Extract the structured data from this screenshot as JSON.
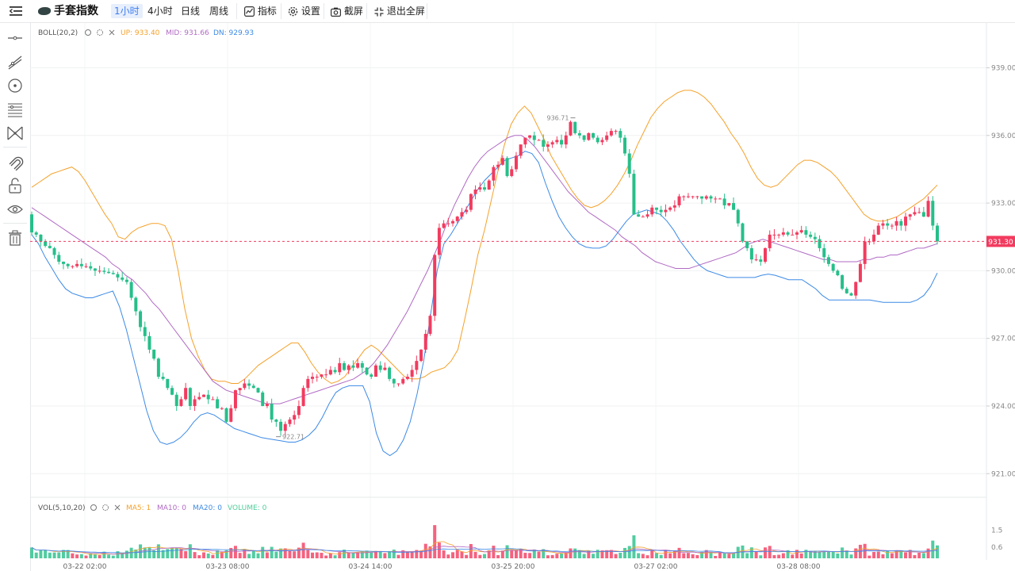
{
  "toolbar": {
    "brand": "手套指数",
    "intervals": [
      "1小时",
      "4小时",
      "日线",
      "周线"
    ],
    "active_interval": "1小时",
    "indicators_label": "指标",
    "settings_label": "设置",
    "screenshot_label": "截屏",
    "exit_fullscreen_label": "退出全屏"
  },
  "sidebar": {
    "tools": [
      "horizontal-line-icon",
      "trend-line-icon",
      "circle-point-icon",
      "fibonacci-lines-icon",
      "pattern-icon",
      "magnet-icon",
      "lock-icon",
      "eye-icon",
      "trash-icon"
    ]
  },
  "main_legend": {
    "name": "BOLL(20,2)",
    "up": "UP: 933.40",
    "mid": "MID: 931.66",
    "dn": "DN: 929.93"
  },
  "vol_legend": {
    "name": "VOL(5,10,20)",
    "ma5": "MA5: 1",
    "ma10": "MA10: 0",
    "ma20": "MA20: 0",
    "volume": "VOLUME: 0"
  },
  "price": {
    "current": "931.30",
    "current_value": 931.3,
    "high_label": "936.71",
    "low_label": "922.71"
  },
  "colors": {
    "up": "#f23b5f",
    "down": "#26bf8a",
    "boll_up": "#f5a12a",
    "boll_mid": "#b06ac4",
    "boll_dn": "#3c8ae6",
    "price_line": "#f23b5f"
  },
  "chart_data": {
    "type": "candlestick",
    "y_ticks": [
      "939.00",
      "936.00",
      "933.00",
      "930.00",
      "927.00",
      "924.00",
      "921.00"
    ],
    "ylim": [
      920.2,
      940.6
    ],
    "x_ticks": [
      "03-22 02:00",
      "03-23 08:00",
      "03-24 14:00",
      "03-25 20:00",
      "03-27 02:00",
      "03-28 08:00"
    ],
    "vol_ticks": [
      "1.5",
      "0.6"
    ],
    "vol_ylim": [
      0,
      2.2
    ],
    "close": [
      931.7,
      931.6,
      931.3,
      931.1,
      931.0,
      930.7,
      930.4,
      930.3,
      930.2,
      930.2,
      930.3,
      930.2,
      930.2,
      930.1,
      930.0,
      930.0,
      929.95,
      929.9,
      929.85,
      929.7,
      929.6,
      929.5,
      928.8,
      928.2,
      927.5,
      927.1,
      926.5,
      926.1,
      925.3,
      925.2,
      924.8,
      924.5,
      924.0,
      924.3,
      924.8,
      924.0,
      924.3,
      924.4,
      924.5,
      924.3,
      924.3,
      923.9,
      923.9,
      923.3,
      923.9,
      924.7,
      924.8,
      925.0,
      924.9,
      924.8,
      924.6,
      924.0,
      924.1,
      923.4,
      923.3,
      922.9,
      923.2,
      923.4,
      923.6,
      924.0,
      924.8,
      925.2,
      925.3,
      925.3,
      925.4,
      925.4,
      925.6,
      925.5,
      925.9,
      925.6,
      925.8,
      925.7,
      925.9,
      925.7,
      925.4,
      925.3,
      925.8,
      925.6,
      925.7,
      925.2,
      925.0,
      925.0,
      925.2,
      925.3,
      925.6,
      926.0,
      926.5,
      927.2,
      928.0,
      930.7,
      931.9,
      932.1,
      932.1,
      932.2,
      932.4,
      932.6,
      932.7,
      933.4,
      933.6,
      933.7,
      933.6,
      934.0,
      934.6,
      934.7,
      935.0,
      934.2,
      934.5,
      935.1,
      935.6,
      935.9,
      936.0,
      935.8,
      935.8,
      935.5,
      935.6,
      935.7,
      935.8,
      935.6,
      936.0,
      936.6,
      936.1,
      936.0,
      935.8,
      936.1,
      935.9,
      935.7,
      935.8,
      936.0,
      936.2,
      936.2,
      935.9,
      935.2,
      934.3,
      932.5,
      932.4,
      932.4,
      932.5,
      932.8,
      932.7,
      932.6,
      932.7,
      932.8,
      932.9,
      933.3,
      933.3,
      933.3,
      933.3,
      933.3,
      933.2,
      933.3,
      933.2,
      933.2,
      933.2,
      932.9,
      933.0,
      932.7,
      932.1,
      931.3,
      931.0,
      930.5,
      930.5,
      930.4,
      931.0,
      931.6,
      931.6,
      931.6,
      931.7,
      931.6,
      931.6,
      931.7,
      931.8,
      931.6,
      931.5,
      931.4,
      931.0,
      930.6,
      930.3,
      930.0,
      929.8,
      929.2,
      929.0,
      928.9,
      929.5,
      930.3,
      931.3,
      931.3,
      931.6,
      932.0,
      932.1,
      932.0,
      932.0,
      932.2,
      932.0,
      932.4,
      932.5,
      932.6,
      932.6,
      932.4,
      933.1,
      932.0,
      931.3
    ],
    "boll_up": [
      933.7,
      933.9,
      934.1,
      934.3,
      934.4,
      934.5,
      934.6,
      934.4,
      934.0,
      933.5,
      933.0,
      932.5,
      932.1,
      931.5,
      931.4,
      931.7,
      931.9,
      932.0,
      932.1,
      932.1,
      932.0,
      931.4,
      930.0,
      928.3,
      927.0,
      926.2,
      925.6,
      925.2,
      925.1,
      925.1,
      925.0,
      925.0,
      925.2,
      925.5,
      925.8,
      926.0,
      926.2,
      926.4,
      926.6,
      926.8,
      926.8,
      926.4,
      925.9,
      925.5,
      925.2,
      925.0,
      925.1,
      925.3,
      925.7,
      926.1,
      926.5,
      926.7,
      926.5,
      926.2,
      925.9,
      925.6,
      925.3,
      925.2,
      925.2,
      925.3,
      925.5,
      925.6,
      925.7,
      926.0,
      926.5,
      927.8,
      929.2,
      930.7,
      931.8,
      933.1,
      934.4,
      935.6,
      936.5,
      937.0,
      937.3,
      937.0,
      936.4,
      935.8,
      935.1,
      934.6,
      934.1,
      933.6,
      933.2,
      932.9,
      932.8,
      932.9,
      933.1,
      933.4,
      933.8,
      934.3,
      934.9,
      935.6,
      936.2,
      936.8,
      937.2,
      937.5,
      937.7,
      937.9,
      938.0,
      938.0,
      937.9,
      937.7,
      937.4,
      937.0,
      936.6,
      936.1,
      935.7,
      935.2,
      934.6,
      934.1,
      933.8,
      933.7,
      933.8,
      934.1,
      934.4,
      934.7,
      934.9,
      934.9,
      934.8,
      934.6,
      934.4,
      934.1,
      933.7,
      933.3,
      932.9,
      932.5,
      932.3,
      932.2,
      932.2,
      932.3,
      932.4,
      932.6,
      932.8,
      933.0,
      933.2,
      933.5,
      933.8
    ],
    "boll_mid": [
      932.8,
      932.6,
      932.4,
      932.2,
      932.0,
      931.8,
      931.6,
      931.4,
      931.2,
      931.0,
      930.8,
      930.6,
      930.3,
      930.1,
      929.8,
      929.6,
      929.3,
      929.0,
      928.6,
      928.3,
      927.9,
      927.5,
      927.1,
      926.7,
      926.3,
      925.9,
      925.5,
      925.1,
      924.9,
      924.7,
      924.6,
      924.5,
      924.4,
      924.3,
      924.2,
      924.1,
      924.1,
      924.1,
      924.2,
      924.3,
      924.4,
      924.5,
      924.6,
      924.7,
      924.8,
      924.9,
      925.0,
      925.1,
      925.2,
      925.4,
      925.6,
      925.9,
      926.3,
      926.7,
      927.2,
      927.7,
      928.2,
      928.8,
      929.4,
      930.0,
      930.7,
      931.4,
      932.2,
      932.9,
      933.5,
      934.1,
      934.6,
      935.0,
      935.3,
      935.5,
      935.7,
      935.9,
      936.0,
      936.0,
      935.8,
      935.5,
      935.1,
      934.7,
      934.3,
      933.9,
      933.5,
      933.2,
      932.9,
      932.6,
      932.4,
      932.2,
      932.0,
      931.8,
      931.5,
      931.3,
      931.1,
      930.8,
      930.6,
      930.4,
      930.3,
      930.2,
      930.1,
      930.1,
      930.1,
      930.2,
      930.3,
      930.4,
      930.5,
      930.6,
      930.7,
      930.8,
      931.0,
      931.2,
      931.3,
      931.4,
      931.3,
      931.2,
      931.1,
      931.0,
      930.9,
      930.8,
      930.7,
      930.6,
      930.5,
      930.5,
      930.4,
      930.4,
      930.4,
      930.4,
      930.5,
      930.5,
      930.6,
      930.6,
      930.7,
      930.7,
      930.8,
      930.9,
      931.0,
      931.0,
      931.1,
      931.2
    ],
    "boll_dn": [
      931.6,
      931.2,
      930.6,
      930.1,
      929.6,
      929.2,
      929.0,
      928.9,
      928.8,
      928.8,
      928.9,
      929.0,
      929.1,
      928.4,
      927.4,
      926.2,
      925.0,
      923.8,
      922.9,
      922.4,
      922.3,
      922.4,
      922.6,
      922.9,
      923.3,
      923.6,
      923.7,
      923.6,
      923.4,
      923.2,
      923.0,
      922.9,
      922.8,
      922.7,
      922.6,
      922.55,
      922.5,
      922.45,
      922.4,
      922.4,
      922.5,
      922.7,
      923.0,
      923.5,
      924.1,
      924.6,
      924.8,
      924.9,
      924.9,
      924.9,
      924.2,
      922.8,
      922.0,
      921.8,
      922.0,
      922.5,
      923.3,
      924.5,
      926.0,
      928.0,
      930.0,
      931.2,
      931.6,
      932.1,
      932.6,
      933.1,
      933.6,
      934.0,
      934.3,
      934.6,
      934.9,
      935.0,
      935.1,
      935.3,
      935.2,
      934.8,
      933.9,
      933.1,
      932.4,
      931.9,
      931.5,
      931.2,
      931.05,
      931.0,
      931.0,
      931.1,
      931.4,
      931.8,
      932.2,
      932.5,
      932.6,
      932.7,
      932.6,
      932.5,
      932.2,
      931.8,
      931.3,
      930.9,
      930.5,
      930.2,
      930.0,
      929.9,
      929.8,
      929.7,
      929.7,
      929.7,
      929.7,
      929.7,
      929.8,
      929.85,
      929.8,
      929.7,
      929.6,
      929.6,
      929.6,
      929.4,
      929.2,
      928.9,
      928.7,
      928.7,
      928.7,
      928.7,
      928.7,
      928.7,
      928.7,
      928.65,
      928.6,
      928.6,
      928.6,
      928.6,
      928.6,
      928.7,
      928.9,
      929.3,
      929.9
    ]
  }
}
